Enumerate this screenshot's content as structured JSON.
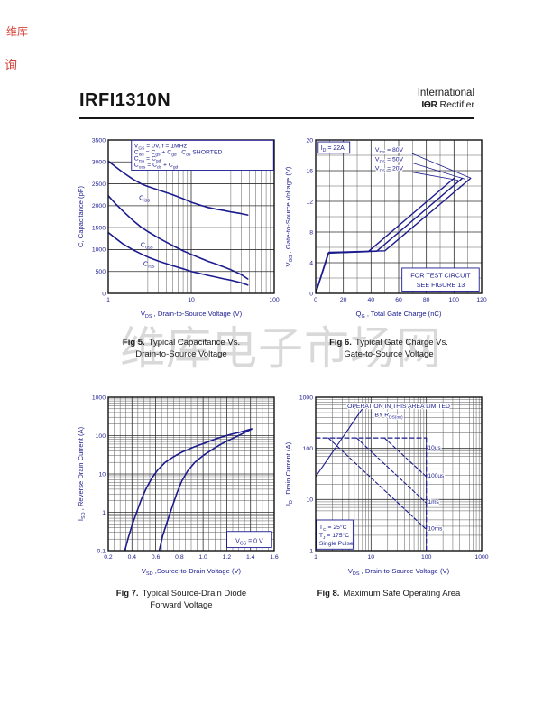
{
  "page": {
    "header": {
      "part_number": "IRFI1310N",
      "brand_line1": "International",
      "brand_mark": "IƟR",
      "brand_line2": "Rectifier"
    },
    "watermark": "维库电子市场网",
    "stamps": [
      "维库",
      "询"
    ],
    "colors": {
      "ink": "#1b1b8f",
      "grid_minor": "#5a5a5a",
      "grid_major": "#2e2e2e",
      "frame": "#111111",
      "stamp_red": "#cf3128",
      "watermark_gray": "#b9b9b9"
    },
    "captions": {
      "fig5": {
        "bold": "Fig 5.",
        "line1": "Typical Capacitance Vs.",
        "line2": "Drain-to-Source Voltage"
      },
      "fig6": {
        "bold": "Fig 6.",
        "line1": "Typical Gate Charge Vs.",
        "line2": "Gate-to-Source Voltage"
      },
      "fig7": {
        "bold": "Fig 7.",
        "line1": "Typical Source-Drain Diode",
        "line2": "Forward Voltage"
      },
      "fig8": {
        "bold": "Fig 8.",
        "line1": "Maximum Safe Operating Area",
        "line2": ""
      }
    }
  },
  "chart_data": [
    {
      "type": "line",
      "title": "Typical Capacitance Vs. Drain-to-Source Voltage",
      "x": {
        "scale": "log",
        "lim": [
          1,
          100
        ],
        "ticks": {
          "values": [
            1,
            10,
            100
          ],
          "labels": [
            "1",
            "10",
            "100"
          ]
        },
        "minors": [
          2,
          3,
          4,
          5,
          6,
          7,
          8,
          9,
          20,
          30,
          40,
          50,
          60,
          70,
          80,
          90
        ],
        "title": "V~DS~ , Drain-to-Source Voltage (V)"
      },
      "y": {
        "scale": "linear",
        "lim": [
          0,
          3500
        ],
        "ticks": {
          "values": [
            0,
            500,
            1000,
            1500,
            2000,
            2500,
            3000,
            3500
          ],
          "labels": [
            "0",
            "500",
            "1000",
            "1500",
            "2000",
            "2500",
            "3000",
            "3500"
          ]
        },
        "minors": [],
        "title": "C, Capacitance (pF)"
      },
      "series": [
        {
          "name": "Ciss",
          "w": 1.6,
          "points": [
            [
              1,
              3020
            ],
            [
              1.2,
              2900
            ],
            [
              1.5,
              2760
            ],
            [
              2,
              2600
            ],
            [
              2.5,
              2500
            ],
            [
              3,
              2440
            ],
            [
              4,
              2360
            ],
            [
              5,
              2300
            ],
            [
              6,
              2250
            ],
            [
              8,
              2160
            ],
            [
              10,
              2080
            ],
            [
              13,
              2010
            ],
            [
              16,
              1960
            ],
            [
              20,
              1920
            ],
            [
              25,
              1890
            ],
            [
              30,
              1860
            ],
            [
              40,
              1820
            ],
            [
              48,
              1790
            ]
          ]
        },
        {
          "name": "Coss",
          "w": 1.6,
          "points": [
            [
              1,
              2230
            ],
            [
              1.2,
              2060
            ],
            [
              1.5,
              1880
            ],
            [
              2,
              1660
            ],
            [
              2.5,
              1510
            ],
            [
              3,
              1410
            ],
            [
              4,
              1270
            ],
            [
              5,
              1170
            ],
            [
              6,
              1090
            ],
            [
              8,
              970
            ],
            [
              10,
              890
            ],
            [
              13,
              800
            ],
            [
              16,
              730
            ],
            [
              20,
              670
            ],
            [
              25,
              600
            ],
            [
              30,
              540
            ],
            [
              40,
              430
            ],
            [
              48,
              330
            ]
          ]
        },
        {
          "name": "Crss",
          "w": 1.6,
          "points": [
            [
              1,
              1390
            ],
            [
              1.2,
              1270
            ],
            [
              1.5,
              1130
            ],
            [
              2,
              990
            ],
            [
              2.5,
              900
            ],
            [
              3,
              830
            ],
            [
              4,
              740
            ],
            [
              5,
              680
            ],
            [
              6,
              630
            ],
            [
              8,
              560
            ],
            [
              10,
              500
            ],
            [
              13,
              450
            ],
            [
              16,
              410
            ],
            [
              20,
              370
            ],
            [
              25,
              330
            ],
            [
              30,
              300
            ],
            [
              40,
              240
            ],
            [
              48,
              190
            ]
          ]
        }
      ],
      "labels": [
        {
          "t": "C~iss~",
          "x": 2.35,
          "y": 2130,
          "size": 7.5
        },
        {
          "t": "C~oss~",
          "x": 2.45,
          "y": 1060,
          "size": 7.5
        },
        {
          "t": "C~rss~",
          "x": 2.65,
          "y": 630,
          "size": 7.5
        }
      ],
      "boxes": [
        {
          "lines": [
            "V~GS~ = 0V,      f = 1MHz",
            "C~iss~ = C~gs~ + C~gd~ ,  C~ds~  SHORTED",
            "C~rss~ = C~gd~",
            "C~oss~ = C~ds~ + C~gd~"
          ],
          "fx": 0.14,
          "fy": 0.002,
          "fw": 0.856,
          "fh": 0.195,
          "align": "left",
          "size": 6.8
        }
      ]
    },
    {
      "type": "line",
      "title": "Typical Gate Charge Vs. Gate-to-Source Voltage",
      "x": {
        "scale": "linear",
        "lim": [
          0,
          120
        ],
        "ticks": {
          "values": [
            0,
            20,
            40,
            60,
            80,
            100,
            120
          ],
          "labels": [
            "0",
            "20",
            "40",
            "60",
            "80",
            "100",
            "120"
          ]
        },
        "minors": [
          10,
          30,
          50,
          70,
          90,
          110
        ],
        "title": "Q~G~ , Total Gate Charge (nC)"
      },
      "y": {
        "scale": "linear",
        "lim": [
          0,
          20
        ],
        "ticks": {
          "values": [
            0,
            4,
            8,
            12,
            16,
            20
          ],
          "labels": [
            "0",
            "4",
            "8",
            "12",
            "16",
            "20"
          ]
        },
        "minors": [
          2,
          6,
          10,
          14,
          18
        ],
        "title": "V~GS~ , Gate-to-Source Voltage (V)"
      },
      "series": [
        {
          "name": "VDS=20V",
          "w": 1.4,
          "points": [
            [
              0,
              0
            ],
            [
              9,
              5.25
            ],
            [
              38,
              5.45
            ],
            [
              100,
              15.0
            ]
          ]
        },
        {
          "name": "VDS=50V",
          "w": 1.4,
          "points": [
            [
              0,
              0
            ],
            [
              9.3,
              5.3
            ],
            [
              44,
              5.5
            ],
            [
              106,
              15.0
            ]
          ]
        },
        {
          "name": "VDS=80V",
          "w": 1.4,
          "points": [
            [
              0,
              0
            ],
            [
              9.6,
              5.35
            ],
            [
              50,
              5.55
            ],
            [
              112,
              15.0
            ]
          ]
        },
        {
          "name": "leader-80V",
          "w": 0.8,
          "points": [
            [
              70,
              18.2
            ],
            [
              112,
              15.05
            ]
          ]
        },
        {
          "name": "leader-50V",
          "w": 0.8,
          "points": [
            [
              70,
              17.0
            ],
            [
              108,
              14.9
            ]
          ]
        },
        {
          "name": "leader-20V",
          "w": 0.8,
          "points": [
            [
              70,
              15.8
            ],
            [
              103,
              14.75
            ]
          ]
        }
      ],
      "labels": [
        {
          "t": "V~DS~ = 80V",
          "x": 43,
          "y": 18.45,
          "size": 6.8,
          "halo": true
        },
        {
          "t": "V~DS~ = 50V",
          "x": 43,
          "y": 17.25,
          "size": 6.8,
          "halo": true
        },
        {
          "t": "V~DS~ = 20V",
          "x": 43,
          "y": 16.05,
          "size": 6.8,
          "halo": true
        }
      ],
      "boxes": [
        {
          "lines": [
            "I~D~ = 22A"
          ],
          "fx": 0.015,
          "fy": 0.012,
          "fw": 0.19,
          "fh": 0.075,
          "align": "left",
          "size": 7
        },
        {
          "lines": [
            "FOR TEST CIRCUIT",
            "SEE FIGURE 13"
          ],
          "fx": 0.52,
          "fy": 0.835,
          "fw": 0.465,
          "fh": 0.15,
          "align": "center",
          "size": 7.2
        }
      ]
    },
    {
      "type": "line",
      "title": "Typical Source-Drain Diode Forward Voltage",
      "x": {
        "scale": "linear",
        "lim": [
          0.2,
          1.6
        ],
        "ticks": {
          "values": [
            0.2,
            0.4,
            0.6,
            0.8,
            1.0,
            1.2,
            1.4,
            1.6
          ],
          "labels": [
            "0.2",
            "0.4",
            "0.6",
            "0.8",
            "1.0",
            "1.2",
            "1.4",
            "1.6"
          ]
        },
        "minors": [
          0.25,
          0.3,
          0.35,
          0.45,
          0.5,
          0.55,
          0.65,
          0.7,
          0.75,
          0.85,
          0.9,
          0.95,
          1.05,
          1.1,
          1.15,
          1.25,
          1.3,
          1.35,
          1.45,
          1.5,
          1.55
        ],
        "title": "V~SD~ ,Source-to-Drain Voltage (V)"
      },
      "y": {
        "scale": "log",
        "lim": [
          0.1,
          1000
        ],
        "ticks": {
          "values": [
            0.1,
            1,
            10,
            100,
            1000
          ],
          "labels": [
            "0.1",
            "1",
            "10",
            "100",
            "1000"
          ]
        },
        "minors": [
          0.2,
          0.3,
          0.4,
          0.5,
          0.6,
          0.7,
          0.8,
          0.9,
          2,
          3,
          4,
          5,
          6,
          7,
          8,
          9,
          20,
          30,
          40,
          50,
          60,
          70,
          80,
          90,
          200,
          300,
          400,
          500,
          600,
          700,
          800,
          900
        ],
        "title": "I~SD~ , Reverse Drain Current (A)"
      },
      "series": [
        {
          "name": "TJ-175C",
          "w": 1.6,
          "points": [
            [
              0.34,
              0.1
            ],
            [
              0.37,
              0.22
            ],
            [
              0.4,
              0.45
            ],
            [
              0.44,
              1.0
            ],
            [
              0.48,
              2.2
            ],
            [
              0.52,
              4.2
            ],
            [
              0.57,
              8
            ],
            [
              0.62,
              13
            ],
            [
              0.68,
              20
            ],
            [
              0.75,
              28
            ],
            [
              0.82,
              37
            ],
            [
              0.92,
              50
            ],
            [
              1.02,
              65
            ],
            [
              1.12,
              85
            ],
            [
              1.22,
              105
            ],
            [
              1.32,
              125
            ],
            [
              1.41,
              150
            ]
          ]
        },
        {
          "name": "TJ-25C",
          "w": 1.6,
          "points": [
            [
              0.63,
              0.1
            ],
            [
              0.66,
              0.25
            ],
            [
              0.7,
              0.6
            ],
            [
              0.74,
              1.4
            ],
            [
              0.78,
              3.2
            ],
            [
              0.82,
              6.5
            ],
            [
              0.87,
              12
            ],
            [
              0.93,
              20
            ],
            [
              1.0,
              30
            ],
            [
              1.08,
              44
            ],
            [
              1.16,
              62
            ],
            [
              1.24,
              82
            ],
            [
              1.32,
              108
            ],
            [
              1.41,
              148
            ]
          ]
        }
      ],
      "labels": [],
      "boxes": [
        {
          "lines": [
            "V~GS~ = 0 V"
          ],
          "fx": 0.715,
          "fy": 0.875,
          "fw": 0.27,
          "fh": 0.105,
          "align": "center",
          "size": 7
        }
      ]
    },
    {
      "type": "line",
      "title": "Maximum Safe Operating Area",
      "x": {
        "scale": "log",
        "lim": [
          1,
          1000
        ],
        "ticks": {
          "values": [
            1,
            10,
            100,
            1000
          ],
          "labels": [
            "1",
            "10",
            "100",
            "1000"
          ]
        },
        "minors": [
          2,
          3,
          4,
          5,
          6,
          7,
          8,
          9,
          20,
          30,
          40,
          50,
          60,
          70,
          80,
          90,
          200,
          300,
          400,
          500,
          600,
          700,
          800,
          900
        ],
        "title": "V~DS~ , Drain-to-Source Voltage (V)"
      },
      "y": {
        "scale": "log",
        "lim": [
          1,
          1000
        ],
        "ticks": {
          "values": [
            1,
            10,
            100,
            1000
          ],
          "labels": [
            "1",
            "10",
            "100",
            "1000"
          ]
        },
        "minors": [
          2,
          3,
          4,
          5,
          6,
          7,
          8,
          9,
          20,
          30,
          40,
          50,
          60,
          70,
          80,
          90,
          200,
          300,
          400,
          500,
          600,
          700,
          800,
          900
        ],
        "title": "I~D~ , Drain Current (A)"
      },
      "series": [
        {
          "name": "rdson-limit",
          "w": 1.1,
          "points": [
            [
              1,
              28
            ],
            [
              7,
              600
            ]
          ]
        },
        {
          "name": "10us-limit",
          "w": 1.2,
          "dash": "5,3",
          "points": [
            [
              1,
              160
            ],
            [
              100,
              160
            ]
          ]
        },
        {
          "name": "vdss-limit",
          "w": 1.2,
          "dash": "5,3",
          "points": [
            [
              100,
              160
            ],
            [
              100,
              1
            ]
          ]
        },
        {
          "name": "100us-limit",
          "w": 1.1,
          "dash": "4,2.5",
          "points": [
            [
              17.5,
              160
            ],
            [
              100,
              28
            ]
          ]
        },
        {
          "name": "1ms-limit",
          "w": 1.1,
          "dash": "4,2.5",
          "points": [
            [
              5.5,
              160
            ],
            [
              100,
              8.5
            ]
          ]
        },
        {
          "name": "10ms-limit",
          "w": 1.1,
          "dash": "4,2.5",
          "points": [
            [
              1.7,
              160
            ],
            [
              100,
              2.6
            ]
          ]
        }
      ],
      "labels": [
        {
          "t": "OPERATION IN THIS AREA LIMITED",
          "fx": 0.5,
          "fy": 0.07,
          "anchor": "middle",
          "size": 6.8,
          "halo": true
        },
        {
          "t": "BY R~DS(on)~",
          "fx": 0.44,
          "fy": 0.125,
          "anchor": "middle",
          "size": 6.8,
          "halo": true
        },
        {
          "t": "10us",
          "x": 107,
          "y": 95,
          "size": 6.5,
          "halo": true
        },
        {
          "t": "100us",
          "x": 107,
          "y": 27,
          "size": 6.5,
          "halo": true
        },
        {
          "t": "1ms",
          "x": 107,
          "y": 8.2,
          "size": 6.5,
          "halo": true
        },
        {
          "t": "10ms",
          "x": 107,
          "y": 2.5,
          "size": 6.5,
          "halo": true
        }
      ],
      "boxes": [
        {
          "lines": [
            "T~C~ = 25°C",
            "T~J~ = 175°C",
            "Single Pulse"
          ],
          "fx": 0.005,
          "fy": 0.8,
          "fw": 0.22,
          "fh": 0.19,
          "align": "left",
          "size": 6.8
        }
      ]
    }
  ]
}
